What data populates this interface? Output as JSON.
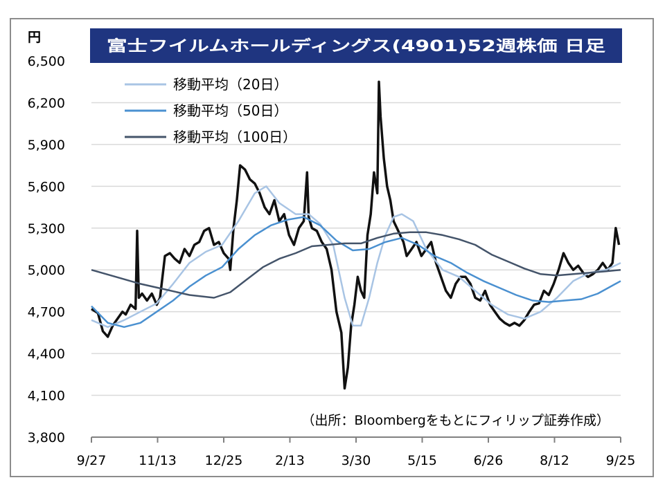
{
  "chart_data": {
    "type": "line",
    "title": "富士フイルムホールディングス(4901)52週株価 日足",
    "unit": "円",
    "source_note": "（出所：Bloombergをもとにフィリップ証券作成）",
    "x_ticks": [
      "9/27",
      "11/13",
      "12/25",
      "2/13",
      "3/30",
      "5/15",
      "6/26",
      "8/12",
      "9/25"
    ],
    "y_ticks": [
      "6,500",
      "6,200",
      "5,900",
      "5,600",
      "5,300",
      "5,000",
      "4,700",
      "4,400",
      "4,100",
      "3,800"
    ],
    "ylim": [
      3800,
      6500
    ],
    "grid": true,
    "legend_position": "top-left",
    "price_color": "#111111",
    "price_points": [
      [
        0,
        4720
      ],
      [
        4,
        4690
      ],
      [
        7,
        4560
      ],
      [
        10,
        4520
      ],
      [
        13,
        4600
      ],
      [
        16,
        4650
      ],
      [
        19,
        4700
      ],
      [
        21,
        4680
      ],
      [
        24,
        4750
      ],
      [
        27,
        4720
      ],
      [
        28,
        5280
      ],
      [
        29,
        4800
      ],
      [
        31,
        4830
      ],
      [
        34,
        4780
      ],
      [
        37,
        4830
      ],
      [
        40,
        4750
      ],
      [
        42,
        4800
      ],
      [
        45,
        5100
      ],
      [
        48,
        5120
      ],
      [
        51,
        5080
      ],
      [
        54,
        5050
      ],
      [
        57,
        5150
      ],
      [
        60,
        5100
      ],
      [
        63,
        5180
      ],
      [
        66,
        5200
      ],
      [
        69,
        5280
      ],
      [
        72,
        5300
      ],
      [
        75,
        5180
      ],
      [
        78,
        5200
      ],
      [
        81,
        5120
      ],
      [
        84,
        5080
      ],
      [
        85,
        5000
      ],
      [
        87,
        5300
      ],
      [
        89,
        5500
      ],
      [
        91,
        5750
      ],
      [
        94,
        5720
      ],
      [
        97,
        5650
      ],
      [
        100,
        5620
      ],
      [
        103,
        5550
      ],
      [
        106,
        5450
      ],
      [
        109,
        5400
      ],
      [
        112,
        5500
      ],
      [
        115,
        5350
      ],
      [
        118,
        5400
      ],
      [
        121,
        5250
      ],
      [
        124,
        5180
      ],
      [
        127,
        5300
      ],
      [
        130,
        5350
      ],
      [
        132,
        5700
      ],
      [
        133,
        5380
      ],
      [
        135,
        5300
      ],
      [
        138,
        5280
      ],
      [
        141,
        5200
      ],
      [
        144,
        5150
      ],
      [
        147,
        5000
      ],
      [
        150,
        4700
      ],
      [
        153,
        4550
      ],
      [
        155,
        4150
      ],
      [
        157,
        4300
      ],
      [
        159,
        4600
      ],
      [
        161,
        4750
      ],
      [
        163,
        4950
      ],
      [
        165,
        4850
      ],
      [
        167,
        4800
      ],
      [
        169,
        5250
      ],
      [
        171,
        5400
      ],
      [
        173,
        5700
      ],
      [
        175,
        5550
      ],
      [
        176,
        6350
      ],
      [
        177,
        6100
      ],
      [
        179,
        5800
      ],
      [
        181,
        5600
      ],
      [
        183,
        5500
      ],
      [
        185,
        5350
      ],
      [
        187,
        5300
      ],
      [
        189,
        5250
      ],
      [
        191,
        5200
      ],
      [
        193,
        5100
      ],
      [
        196,
        5150
      ],
      [
        199,
        5200
      ],
      [
        202,
        5100
      ],
      [
        205,
        5150
      ],
      [
        208,
        5200
      ],
      [
        211,
        5050
      ],
      [
        214,
        4950
      ],
      [
        217,
        4850
      ],
      [
        220,
        4800
      ],
      [
        223,
        4900
      ],
      [
        226,
        4950
      ],
      [
        229,
        4950
      ],
      [
        232,
        4900
      ],
      [
        235,
        4800
      ],
      [
        238,
        4780
      ],
      [
        241,
        4850
      ],
      [
        244,
        4750
      ],
      [
        247,
        4700
      ],
      [
        250,
        4650
      ],
      [
        253,
        4620
      ],
      [
        256,
        4600
      ],
      [
        259,
        4620
      ],
      [
        262,
        4600
      ],
      [
        265,
        4640
      ],
      [
        268,
        4700
      ],
      [
        271,
        4750
      ],
      [
        274,
        4760
      ],
      [
        277,
        4850
      ],
      [
        280,
        4820
      ],
      [
        283,
        4900
      ],
      [
        286,
        5000
      ],
      [
        289,
        5120
      ],
      [
        292,
        5050
      ],
      [
        295,
        5000
      ],
      [
        298,
        5030
      ],
      [
        301,
        4980
      ],
      [
        304,
        4950
      ],
      [
        307,
        4970
      ],
      [
        310,
        5000
      ],
      [
        313,
        5050
      ],
      [
        316,
        5000
      ],
      [
        319,
        5050
      ],
      [
        321,
        5300
      ],
      [
        323,
        5180
      ]
    ],
    "series": [
      {
        "name": "移動平均（20日）",
        "color": "#a8c4e4",
        "points": [
          [
            0,
            4640
          ],
          [
            10,
            4590
          ],
          [
            20,
            4640
          ],
          [
            30,
            4700
          ],
          [
            40,
            4760
          ],
          [
            50,
            4900
          ],
          [
            60,
            5050
          ],
          [
            70,
            5130
          ],
          [
            80,
            5180
          ],
          [
            90,
            5350
          ],
          [
            100,
            5550
          ],
          [
            107,
            5600
          ],
          [
            115,
            5480
          ],
          [
            125,
            5400
          ],
          [
            133,
            5400
          ],
          [
            140,
            5330
          ],
          [
            148,
            5180
          ],
          [
            155,
            4800
          ],
          [
            160,
            4600
          ],
          [
            165,
            4600
          ],
          [
            170,
            4800
          ],
          [
            175,
            5050
          ],
          [
            180,
            5250
          ],
          [
            185,
            5380
          ],
          [
            190,
            5400
          ],
          [
            197,
            5350
          ],
          [
            205,
            5150
          ],
          [
            215,
            5000
          ],
          [
            225,
            4950
          ],
          [
            235,
            4850
          ],
          [
            245,
            4750
          ],
          [
            255,
            4680
          ],
          [
            265,
            4650
          ],
          [
            275,
            4700
          ],
          [
            285,
            4800
          ],
          [
            295,
            4920
          ],
          [
            305,
            4980
          ],
          [
            315,
            5000
          ],
          [
            324,
            5050
          ]
        ]
      },
      {
        "name": "移動平均（50日）",
        "color": "#4a90d0",
        "points": [
          [
            0,
            4740
          ],
          [
            10,
            4620
          ],
          [
            20,
            4590
          ],
          [
            30,
            4620
          ],
          [
            40,
            4700
          ],
          [
            50,
            4780
          ],
          [
            60,
            4880
          ],
          [
            70,
            4960
          ],
          [
            80,
            5020
          ],
          [
            90,
            5150
          ],
          [
            100,
            5250
          ],
          [
            110,
            5320
          ],
          [
            120,
            5360
          ],
          [
            130,
            5380
          ],
          [
            140,
            5320
          ],
          [
            150,
            5210
          ],
          [
            160,
            5140
          ],
          [
            170,
            5150
          ],
          [
            180,
            5200
          ],
          [
            190,
            5230
          ],
          [
            200,
            5180
          ],
          [
            210,
            5100
          ],
          [
            220,
            5050
          ],
          [
            230,
            4980
          ],
          [
            240,
            4920
          ],
          [
            250,
            4870
          ],
          [
            260,
            4820
          ],
          [
            270,
            4780
          ],
          [
            280,
            4770
          ],
          [
            290,
            4780
          ],
          [
            300,
            4790
          ],
          [
            310,
            4830
          ],
          [
            324,
            4920
          ]
        ]
      },
      {
        "name": "移動平均（100日）",
        "color": "#44546a",
        "points": [
          [
            0,
            5000
          ],
          [
            15,
            4950
          ],
          [
            30,
            4900
          ],
          [
            45,
            4860
          ],
          [
            60,
            4820
          ],
          [
            75,
            4800
          ],
          [
            85,
            4840
          ],
          [
            95,
            4930
          ],
          [
            105,
            5020
          ],
          [
            115,
            5080
          ],
          [
            125,
            5120
          ],
          [
            135,
            5170
          ],
          [
            145,
            5180
          ],
          [
            155,
            5190
          ],
          [
            165,
            5190
          ],
          [
            175,
            5230
          ],
          [
            185,
            5260
          ],
          [
            195,
            5270
          ],
          [
            205,
            5270
          ],
          [
            215,
            5250
          ],
          [
            225,
            5220
          ],
          [
            235,
            5180
          ],
          [
            245,
            5110
          ],
          [
            255,
            5060
          ],
          [
            265,
            5010
          ],
          [
            275,
            4970
          ],
          [
            285,
            4960
          ],
          [
            295,
            4970
          ],
          [
            305,
            4980
          ],
          [
            315,
            4990
          ],
          [
            324,
            5000
          ]
        ]
      }
    ]
  }
}
